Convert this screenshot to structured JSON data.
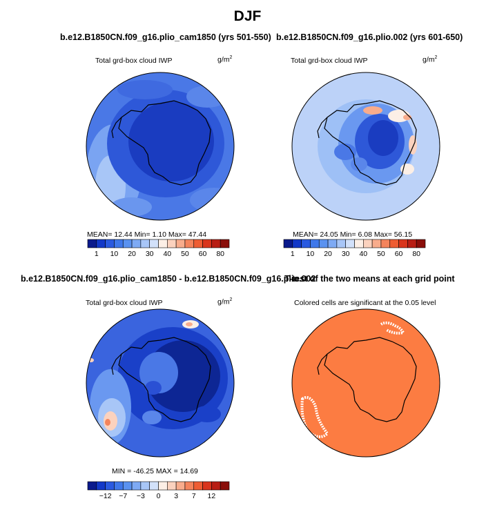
{
  "title": "DJF",
  "panels": {
    "p1": {
      "title": "b.e12.B1850CN.f09_g16.plio_cam1850 (yrs 501-550)",
      "subtitle": "Total grd-box cloud IWP",
      "unit": "g/m",
      "unit_exp": "2",
      "stats": "MEAN=   12.44   Min=      1.10   Max=    47.44"
    },
    "p2": {
      "title": "b.e12.B1850CN.f09_g16.plio.002 (yrs 601-650)",
      "subtitle": "Total grd-box cloud IWP",
      "unit": "g/m",
      "unit_exp": "2",
      "stats": "MEAN=   24.05   Min=      6.08   Max=    56.15"
    },
    "p3": {
      "title": "b.e12.B1850CN.f09_g16.plio_cam1850 - b.e12.B1850CN.f09_g16.plio.002",
      "subtitle": "Total grd-box cloud IWP",
      "unit": "g/m",
      "unit_exp": "2",
      "stats": "MIN =  -46.25  MAX =   14.69"
    },
    "p4": {
      "title": "T-test of the two means at each grid point",
      "subtitle": "Colored cells are significant at the 0.05 level"
    }
  },
  "colorbar_colors": [
    "#0a1a8c",
    "#1238c8",
    "#2a5ae0",
    "#3f78ea",
    "#5a92f0",
    "#7eaaf4",
    "#a8c6f7",
    "#d2e1fa",
    "#fcefe6",
    "#fbd2be",
    "#f8ac8c",
    "#f4845c",
    "#ee5d33",
    "#d9351c",
    "#b81e14",
    "#8a0e0a"
  ],
  "colorbar_abs_labels": [
    "1",
    "10",
    "20",
    "30",
    "40",
    "50",
    "60",
    "80"
  ],
  "colorbar_diff_labels": [
    "−12",
    "−7",
    "−3",
    "0",
    "3",
    "7",
    "12"
  ],
  "colors": {
    "ttest_fill": "#fc7c42",
    "ocean_blue": "#3c66e2",
    "land_dark": "#1a3cc0",
    "coastline": "#000000"
  }
}
